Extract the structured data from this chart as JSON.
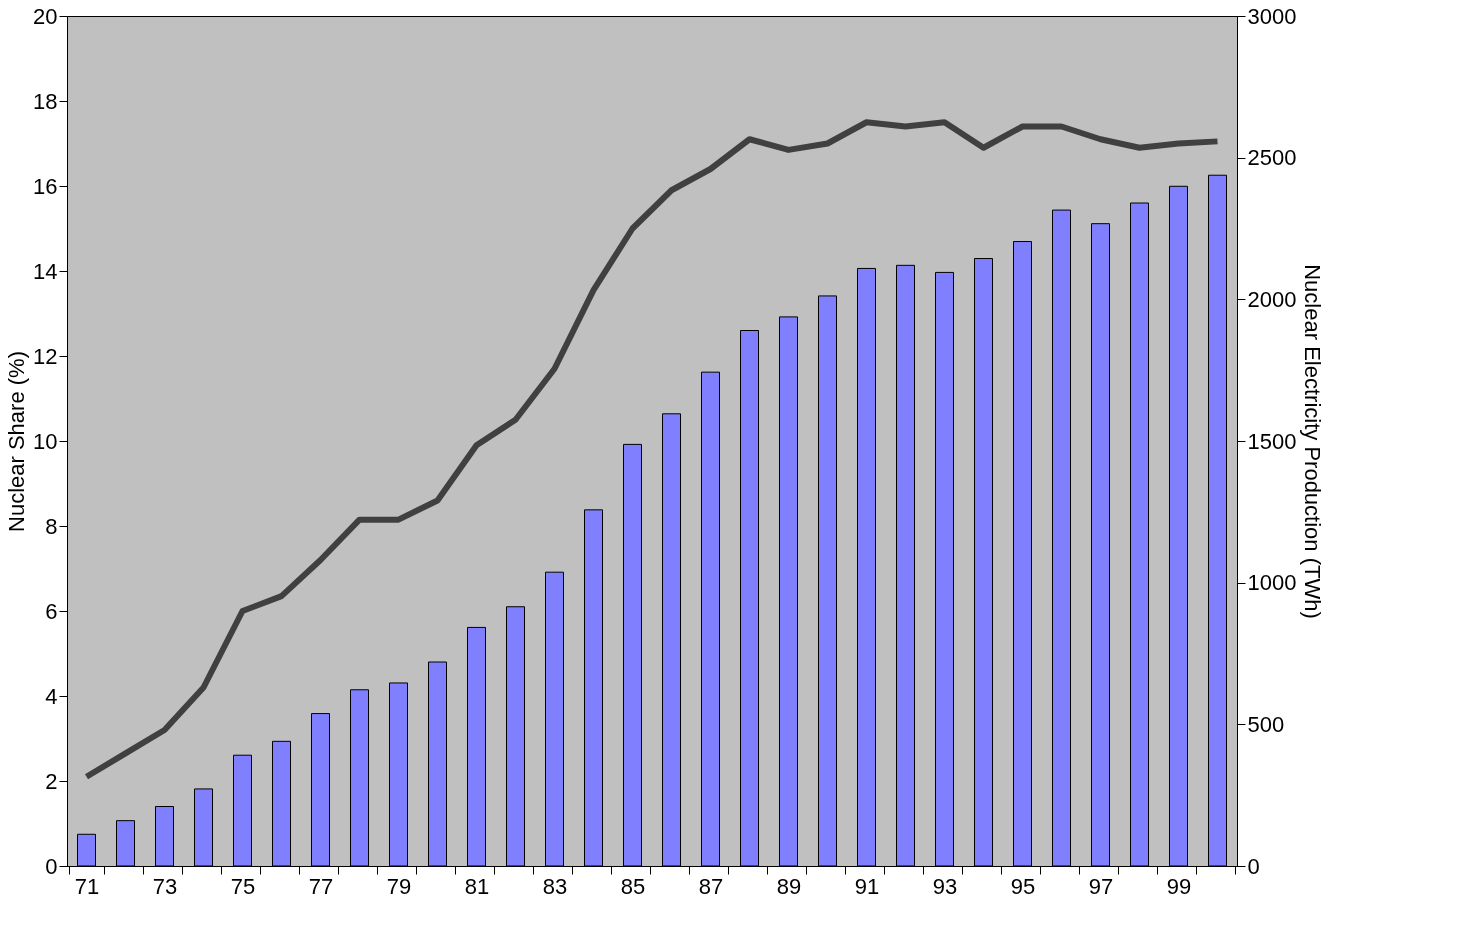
{
  "chart_data": {
    "type": "bar",
    "categories": [
      "71",
      null,
      "73",
      null,
      "75",
      null,
      "77",
      null,
      "79",
      null,
      "81",
      null,
      "83",
      null,
      "85",
      null,
      "87",
      null,
      "89",
      null,
      "91",
      null,
      "93",
      null,
      "95",
      null,
      "97",
      null,
      "99",
      null
    ],
    "ylabel": "Nuclear Share (%)",
    "y2label": "Nuclear Electricity Production (TWh)",
    "ylim": [
      0,
      20
    ],
    "yticks": [
      0,
      2,
      4,
      6,
      8,
      10,
      12,
      14,
      16,
      18,
      20
    ],
    "y2lim": [
      0,
      3000
    ],
    "y2ticks": [
      0,
      500,
      1000,
      1500,
      2000,
      2500,
      3000
    ],
    "grid": false,
    "legend": false,
    "series": [
      {
        "axis": "y2",
        "color": "#8080ff",
        "values": [
          112,
          160,
          210,
          272,
          391,
          440,
          538,
          622,
          646,
          720,
          842,
          915,
          1037,
          1257,
          1488,
          1596,
          1743,
          1890,
          1938,
          2012,
          2109,
          2120,
          2095,
          2144,
          2204,
          2315,
          2267,
          2340,
          2399,
          2438
        ]
      },
      {
        "type": "line",
        "axis": "y",
        "color": "#404040",
        "line_style": "solid",
        "marker": "none",
        "values": [
          2.1,
          2.65,
          3.2,
          4.2,
          6.0,
          6.35,
          7.2,
          8.15,
          8.15,
          8.6,
          9.9,
          10.5,
          11.7,
          13.55,
          15.0,
          15.9,
          16.4,
          17.1,
          16.85,
          17.0,
          17.5,
          17.4,
          17.5,
          16.9,
          17.4,
          17.4,
          17.1,
          16.9,
          17.0,
          17.05
        ]
      }
    ]
  }
}
